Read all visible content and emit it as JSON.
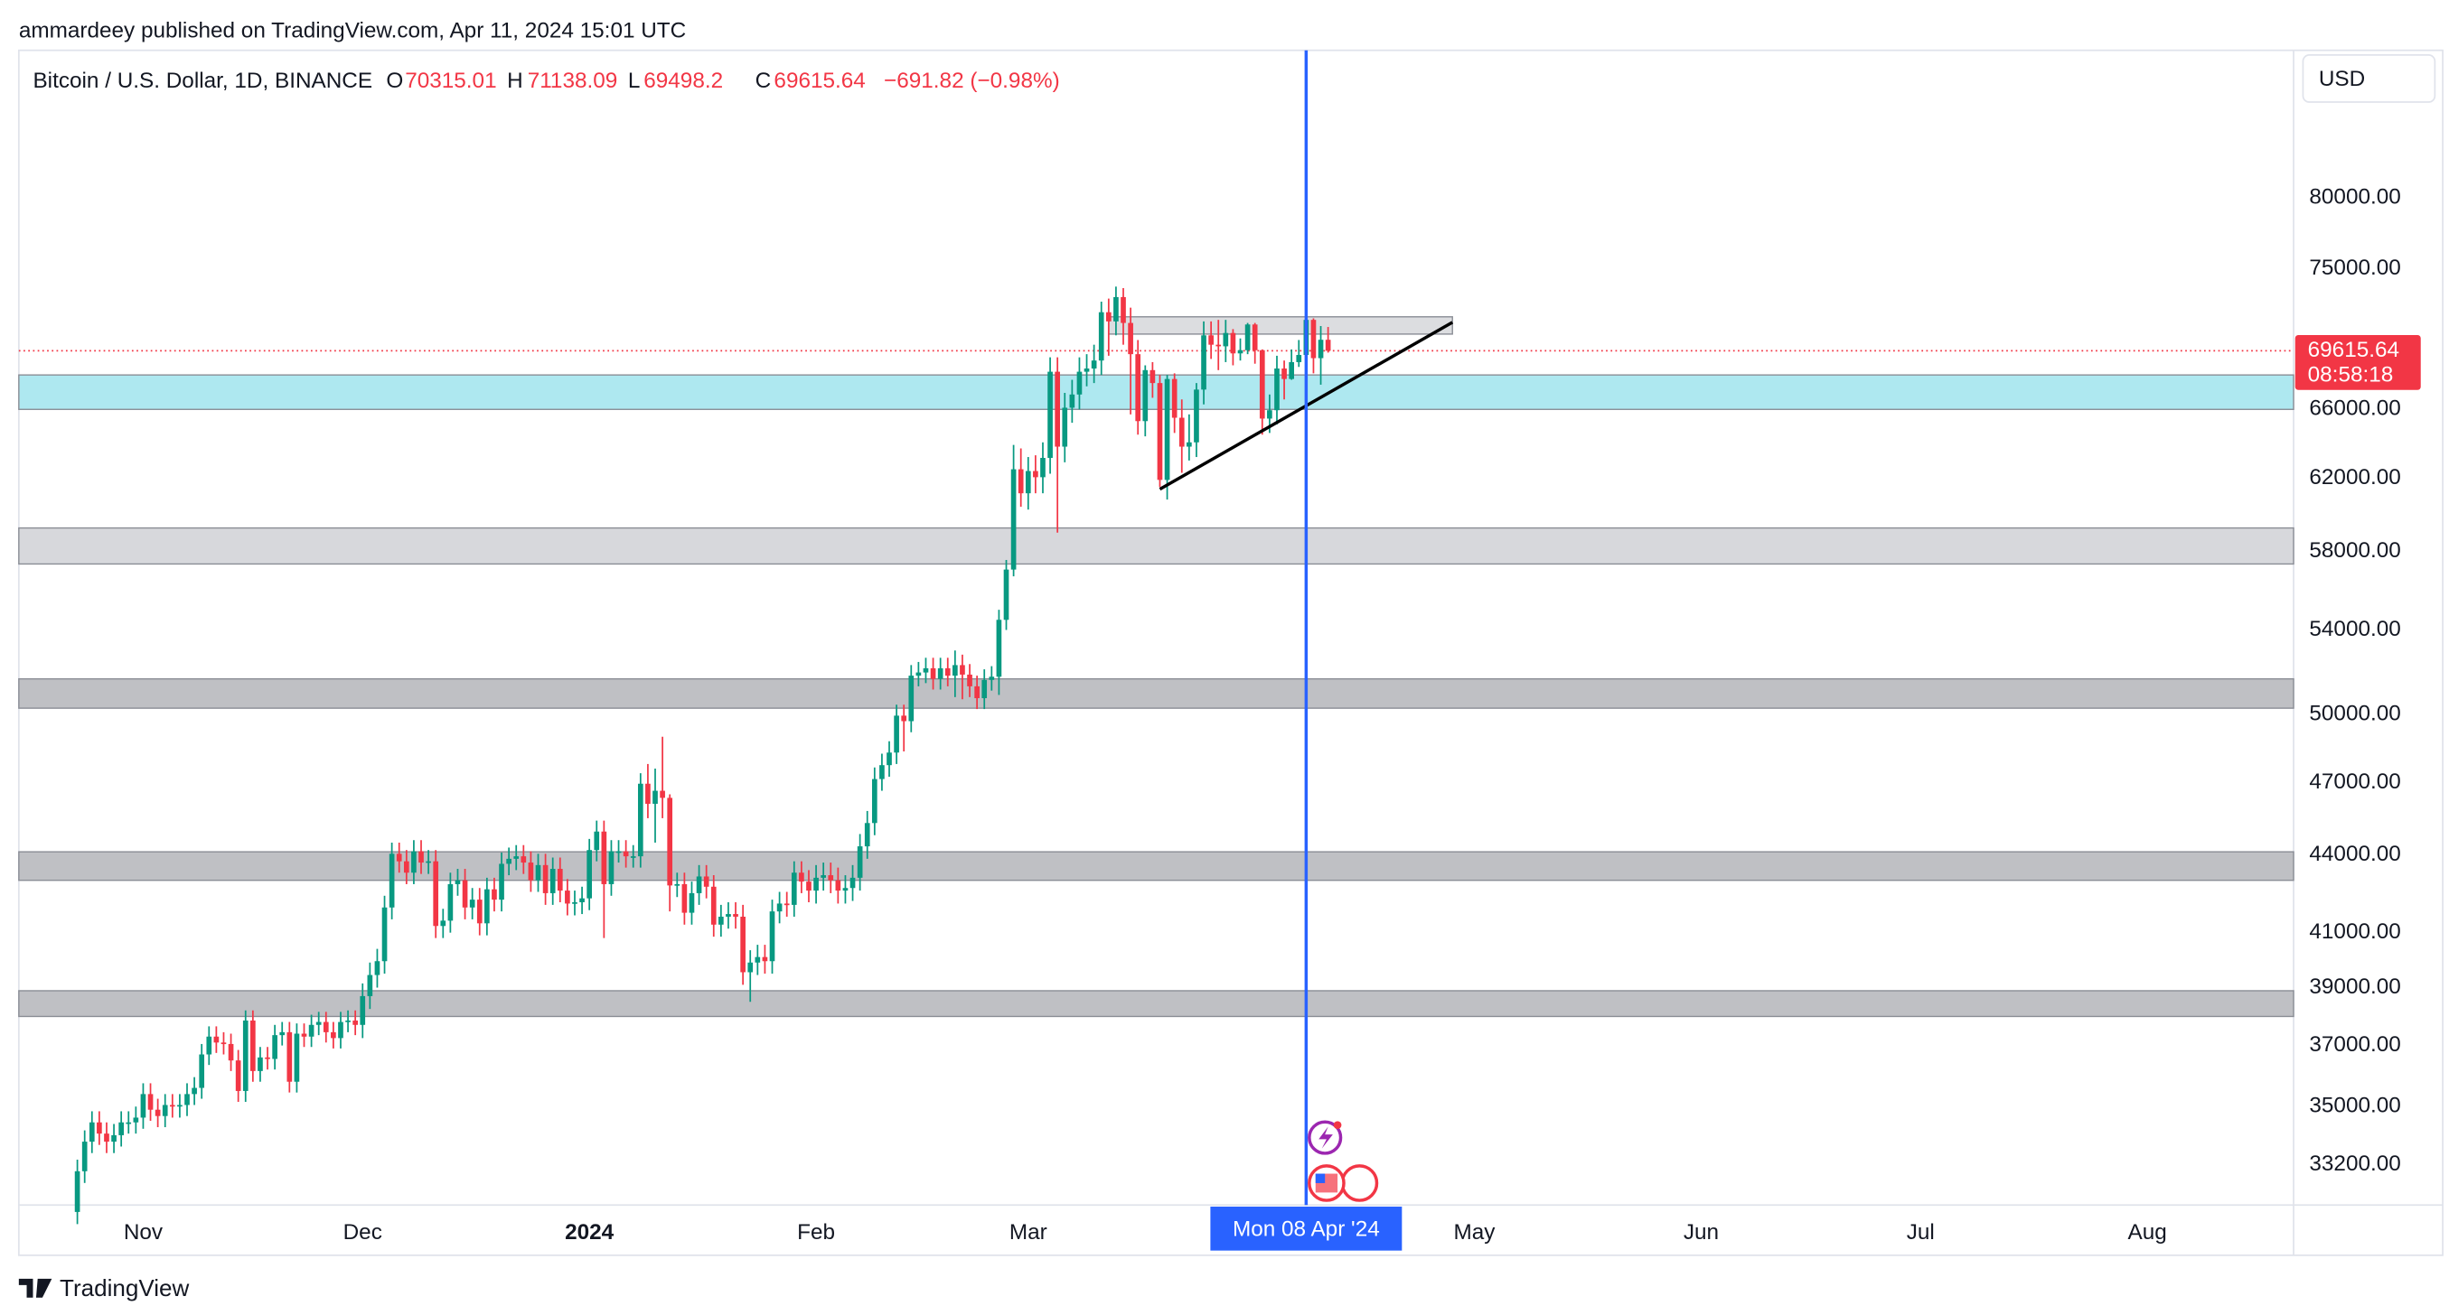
{
  "header": {
    "title": "ammardeey published on TradingView.com, Apr 11, 2024 15:01 UTC",
    "footer": "TradingView"
  },
  "chart_data": {
    "type": "candlestick",
    "symbol": "Bitcoin / U.S. Dollar, 1D, BINANCE",
    "legend_labels": [
      "O",
      "H",
      "L",
      "C"
    ],
    "change": "−691.82 (−0.98%)",
    "currency": "USD",
    "countdown": "08:58:18",
    "up_color": "#089981",
    "down_color": "#f23645",
    "ylog": true,
    "ylim": [
      32000,
      91500
    ],
    "yticks": [
      {
        "value": 80000,
        "label": "80000.00"
      },
      {
        "value": 75000,
        "label": "75000.00"
      },
      {
        "value": 66000,
        "label": "66000.00"
      },
      {
        "value": 62000,
        "label": "62000.00"
      },
      {
        "value": 58000,
        "label": "58000.00"
      },
      {
        "value": 54000,
        "label": "54000.00"
      },
      {
        "value": 50000,
        "label": "50000.00"
      },
      {
        "value": 47000,
        "label": "47000.00"
      },
      {
        "value": 44000,
        "label": "44000.00"
      },
      {
        "value": 41000,
        "label": "41000.00"
      },
      {
        "value": 39000,
        "label": "39000.00"
      },
      {
        "value": 37000,
        "label": "37000.00"
      },
      {
        "value": 35000,
        "label": "35000.00"
      },
      {
        "value": 33200,
        "label": "33200.00"
      }
    ],
    "xlim": [
      "2023-10-15",
      "2024-08-21"
    ],
    "xticks": [
      {
        "value": "2023-11-01",
        "label": "Nov"
      },
      {
        "value": "2023-12-01",
        "label": "Dec"
      },
      {
        "value": "2024-01-01",
        "label": "2024"
      },
      {
        "value": "2024-02-01",
        "label": "Feb"
      },
      {
        "value": "2024-03-01",
        "label": "Mar"
      },
      {
        "value": "2024-05-01",
        "label": "May"
      },
      {
        "value": "2024-06-01",
        "label": "Jun"
      },
      {
        "value": "2024-07-01",
        "label": "Jul"
      },
      {
        "value": "2024-08-01",
        "label": "Aug"
      }
    ],
    "crosshair": {
      "date": "2024-04-08",
      "label": "Mon 08 Apr '24",
      "color": "#2962ff"
    },
    "zones": [
      {
        "low": 66000,
        "high": 68100,
        "color": "#aee8f0"
      },
      {
        "low": 57340,
        "high": 59250,
        "color": "#d7d8dc"
      },
      {
        "low": 50290,
        "high": 51650,
        "color": "#bfc0c4"
      },
      {
        "low": 43000,
        "high": 44130,
        "color": "#bfc0c4"
      },
      {
        "low": 37990,
        "high": 38890,
        "color": "#bfc0c4"
      },
      {
        "low": 70680,
        "high": 71800,
        "color": "#dcdde0",
        "from": "2024-03-12",
        "to": "2024-04-28"
      }
    ],
    "trendline": {
      "x": [
        "2024-03-19",
        "2024-04-28"
      ],
      "y": [
        61380,
        71440
      ],
      "color": "#000000"
    },
    "x": [
      "2023-10-23",
      "2023-10-24",
      "2023-10-25",
      "2023-10-26",
      "2023-10-27",
      "2023-10-28",
      "2023-10-29",
      "2023-10-30",
      "2023-10-31",
      "2023-11-01",
      "2023-11-02",
      "2023-11-03",
      "2023-11-04",
      "2023-11-05",
      "2023-11-06",
      "2023-11-07",
      "2023-11-08",
      "2023-11-09",
      "2023-11-10",
      "2023-11-11",
      "2023-11-12",
      "2023-11-13",
      "2023-11-14",
      "2023-11-15",
      "2023-11-16",
      "2023-11-17",
      "2023-11-18",
      "2023-11-19",
      "2023-11-20",
      "2023-11-21",
      "2023-11-22",
      "2023-11-23",
      "2023-11-24",
      "2023-11-25",
      "2023-11-26",
      "2023-11-27",
      "2023-11-28",
      "2023-11-29",
      "2023-11-30",
      "2023-12-01",
      "2023-12-02",
      "2023-12-03",
      "2023-12-04",
      "2023-12-05",
      "2023-12-06",
      "2023-12-07",
      "2023-12-08",
      "2023-12-09",
      "2023-12-10",
      "2023-12-11",
      "2023-12-12",
      "2023-12-13",
      "2023-12-14",
      "2023-12-15",
      "2023-12-16",
      "2023-12-17",
      "2023-12-18",
      "2023-12-19",
      "2023-12-20",
      "2023-12-21",
      "2023-12-22",
      "2023-12-23",
      "2023-12-24",
      "2023-12-25",
      "2023-12-26",
      "2023-12-27",
      "2023-12-28",
      "2023-12-29",
      "2023-12-30",
      "2023-12-31",
      "2024-01-01",
      "2024-01-02",
      "2024-01-03",
      "2024-01-04",
      "2024-01-05",
      "2024-01-06",
      "2024-01-07",
      "2024-01-08",
      "2024-01-09",
      "2024-01-10",
      "2024-01-11",
      "2024-01-12",
      "2024-01-13",
      "2024-01-14",
      "2024-01-15",
      "2024-01-16",
      "2024-01-17",
      "2024-01-18",
      "2024-01-19",
      "2024-01-20",
      "2024-01-21",
      "2024-01-22",
      "2024-01-23",
      "2024-01-24",
      "2024-01-25",
      "2024-01-26",
      "2024-01-27",
      "2024-01-28",
      "2024-01-29",
      "2024-01-30",
      "2024-01-31",
      "2024-02-01",
      "2024-02-02",
      "2024-02-03",
      "2024-02-04",
      "2024-02-05",
      "2024-02-06",
      "2024-02-07",
      "2024-02-08",
      "2024-02-09",
      "2024-02-10",
      "2024-02-11",
      "2024-02-12",
      "2024-02-13",
      "2024-02-14",
      "2024-02-15",
      "2024-02-16",
      "2024-02-17",
      "2024-02-18",
      "2024-02-19",
      "2024-02-20",
      "2024-02-21",
      "2024-02-22",
      "2024-02-23",
      "2024-02-24",
      "2024-02-25",
      "2024-02-26",
      "2024-02-27",
      "2024-02-28",
      "2024-02-29",
      "2024-03-01",
      "2024-03-02",
      "2024-03-03",
      "2024-03-04",
      "2024-03-05",
      "2024-03-06",
      "2024-03-07",
      "2024-03-08",
      "2024-03-09",
      "2024-03-10",
      "2024-03-11",
      "2024-03-12",
      "2024-03-13",
      "2024-03-14",
      "2024-03-15",
      "2024-03-16",
      "2024-03-17",
      "2024-03-18",
      "2024-03-19",
      "2024-03-20",
      "2024-03-21",
      "2024-03-22",
      "2024-03-23",
      "2024-03-24",
      "2024-03-25",
      "2024-03-26",
      "2024-03-27",
      "2024-03-28",
      "2024-03-29",
      "2024-03-30",
      "2024-03-31",
      "2024-04-01",
      "2024-04-02",
      "2024-04-03",
      "2024-04-04",
      "2024-04-05",
      "2024-04-06",
      "2024-04-07",
      "2024-04-08",
      "2024-04-09",
      "2024-04-10",
      "2024-04-11"
    ],
    "ohlc": [
      [
        31800,
        33350,
        31450,
        33000
      ],
      [
        33000,
        34250,
        32650,
        33900
      ],
      [
        33900,
        34850,
        33550,
        34500
      ],
      [
        34500,
        34850,
        33800,
        34150
      ],
      [
        34150,
        34500,
        33550,
        33900
      ],
      [
        33900,
        34450,
        33550,
        34100
      ],
      [
        34100,
        34850,
        33750,
        34500
      ],
      [
        34500,
        34850,
        34150,
        34500
      ],
      [
        34500,
        35000,
        34150,
        34650
      ],
      [
        34650,
        35750,
        34300,
        35400
      ],
      [
        35400,
        35750,
        34550,
        34900
      ],
      [
        34900,
        35250,
        34350,
        34700
      ],
      [
        34700,
        35400,
        34350,
        35050
      ],
      [
        35050,
        35400,
        34650,
        35000
      ],
      [
        35000,
        35400,
        34650,
        35050
      ],
      [
        35050,
        35750,
        34700,
        35400
      ],
      [
        35400,
        35950,
        35050,
        35600
      ],
      [
        35600,
        37050,
        35250,
        36700
      ],
      [
        36700,
        37650,
        36350,
        37300
      ],
      [
        37300,
        37650,
        36750,
        37100
      ],
      [
        37100,
        37450,
        36700,
        37050
      ],
      [
        37050,
        37400,
        36150,
        36500
      ],
      [
        36500,
        36850,
        35150,
        35500
      ],
      [
        35500,
        38200,
        35150,
        37850
      ],
      [
        37850,
        38200,
        35800,
        36150
      ],
      [
        36150,
        36950,
        35800,
        36600
      ],
      [
        36600,
        36950,
        36200,
        36550
      ],
      [
        36550,
        37700,
        36200,
        37350
      ],
      [
        37350,
        37800,
        37000,
        37450
      ],
      [
        37450,
        37800,
        35450,
        35800
      ],
      [
        35800,
        37750,
        35450,
        37400
      ],
      [
        37400,
        37750,
        36950,
        37300
      ],
      [
        37300,
        38050,
        36950,
        37700
      ],
      [
        37700,
        38150,
        37350,
        37800
      ],
      [
        37800,
        38150,
        37100,
        37450
      ],
      [
        37450,
        37800,
        36900,
        37250
      ],
      [
        37250,
        38150,
        36900,
        37800
      ],
      [
        37800,
        38200,
        37450,
        37850
      ],
      [
        37850,
        38200,
        37350,
        37700
      ],
      [
        37700,
        39150,
        37250,
        38700
      ],
      [
        38700,
        39900,
        38250,
        39450
      ],
      [
        39450,
        40400,
        39000,
        39950
      ],
      [
        39950,
        42400,
        39500,
        41950
      ],
      [
        41950,
        44500,
        41500,
        44050
      ],
      [
        44050,
        44500,
        43300,
        43750
      ],
      [
        43750,
        44200,
        42850,
        43300
      ],
      [
        43300,
        44600,
        42850,
        44150
      ],
      [
        44150,
        44600,
        43250,
        43700
      ],
      [
        43700,
        44200,
        43250,
        43750
      ],
      [
        43750,
        44200,
        40800,
        41250
      ],
      [
        41250,
        41900,
        40800,
        41450
      ],
      [
        41450,
        43300,
        41000,
        42850
      ],
      [
        42850,
        43450,
        42400,
        43000
      ],
      [
        43000,
        43450,
        41500,
        41950
      ],
      [
        41950,
        42700,
        41500,
        42250
      ],
      [
        42250,
        42700,
        40900,
        41350
      ],
      [
        41350,
        43100,
        40900,
        42650
      ],
      [
        42650,
        43100,
        41800,
        42250
      ],
      [
        42250,
        44100,
        41800,
        43650
      ],
      [
        43650,
        44300,
        43200,
        43850
      ],
      [
        43850,
        44400,
        43400,
        43950
      ],
      [
        43950,
        44400,
        43250,
        43700
      ],
      [
        43700,
        44150,
        42550,
        43000
      ],
      [
        43000,
        44050,
        42550,
        43600
      ],
      [
        43600,
        44050,
        42050,
        42500
      ],
      [
        42500,
        43900,
        42050,
        43450
      ],
      [
        43450,
        43900,
        42150,
        42600
      ],
      [
        42600,
        43050,
        41650,
        42100
      ],
      [
        42100,
        42600,
        41650,
        42150
      ],
      [
        42150,
        42750,
        41700,
        42300
      ],
      [
        42300,
        44650,
        41850,
        44200
      ],
      [
        44200,
        45400,
        43750,
        44950
      ],
      [
        44950,
        45400,
        40800,
        42850
      ],
      [
        42850,
        44600,
        42400,
        44150
      ],
      [
        44150,
        44600,
        43700,
        44150
      ],
      [
        44150,
        44600,
        43500,
        43950
      ],
      [
        43950,
        44400,
        43500,
        43950
      ],
      [
        43950,
        47400,
        43500,
        46950
      ],
      [
        46950,
        47800,
        45500,
        46100
      ],
      [
        46100,
        47600,
        44500,
        46650
      ],
      [
        46650,
        49000,
        45500,
        46350
      ],
      [
        46350,
        46500,
        41800,
        42800
      ],
      [
        42800,
        43300,
        42350,
        42850
      ],
      [
        42850,
        43300,
        41300,
        41750
      ],
      [
        41750,
        42950,
        41300,
        42500
      ],
      [
        42500,
        43600,
        42050,
        43150
      ],
      [
        43150,
        43600,
        42300,
        42750
      ],
      [
        42750,
        43200,
        40850,
        41300
      ],
      [
        41300,
        42050,
        40850,
        41600
      ],
      [
        41600,
        42150,
        41150,
        41700
      ],
      [
        41700,
        42150,
        41150,
        41600
      ],
      [
        41600,
        42050,
        39100,
        39550
      ],
      [
        39550,
        40350,
        38500,
        39900
      ],
      [
        39900,
        40550,
        39450,
        40100
      ],
      [
        40100,
        40550,
        39500,
        39950
      ],
      [
        39950,
        42250,
        39500,
        41800
      ],
      [
        41800,
        42550,
        41350,
        42100
      ],
      [
        42100,
        42550,
        41600,
        42050
      ],
      [
        42050,
        43750,
        41600,
        43300
      ],
      [
        43300,
        43750,
        42500,
        42950
      ],
      [
        42950,
        43400,
        42150,
        42600
      ],
      [
        42600,
        43600,
        42100,
        43100
      ],
      [
        43100,
        43700,
        42600,
        43200
      ],
      [
        43200,
        43700,
        42500,
        43000
      ],
      [
        43000,
        43500,
        42100,
        42600
      ],
      [
        42600,
        43200,
        42100,
        42700
      ],
      [
        42700,
        43600,
        42200,
        43100
      ],
      [
        43100,
        44850,
        42600,
        44350
      ],
      [
        44350,
        45800,
        43850,
        45300
      ],
      [
        45300,
        47650,
        44800,
        47150
      ],
      [
        47150,
        48250,
        46650,
        47750
      ],
      [
        47750,
        48800,
        47250,
        48300
      ],
      [
        48300,
        50450,
        47800,
        49950
      ],
      [
        49950,
        50450,
        48350,
        49700
      ],
      [
        49700,
        52300,
        49200,
        51800
      ],
      [
        51800,
        52450,
        51300,
        51950
      ],
      [
        51950,
        52650,
        51450,
        52150
      ],
      [
        52150,
        52650,
        51150,
        51650
      ],
      [
        51650,
        52650,
        51150,
        52150
      ],
      [
        52150,
        52650,
        51300,
        51800
      ],
      [
        51800,
        53000,
        50800,
        52300
      ],
      [
        52300,
        52800,
        50700,
        51850
      ],
      [
        51850,
        52350,
        50800,
        51300
      ],
      [
        51300,
        51800,
        50250,
        50750
      ],
      [
        50750,
        52100,
        50250,
        51600
      ],
      [
        51600,
        52250,
        51100,
        51750
      ],
      [
        51750,
        55000,
        50900,
        54500
      ],
      [
        54500,
        57550,
        54000,
        57050
      ],
      [
        57050,
        63900,
        56700,
        62500
      ],
      [
        62500,
        63700,
        60400,
        61150
      ],
      [
        61150,
        63200,
        60250,
        62400
      ],
      [
        62400,
        63300,
        61150,
        62050
      ],
      [
        62050,
        64050,
        61150,
        63150
      ],
      [
        63150,
        69200,
        62250,
        68300
      ],
      [
        68300,
        69200,
        59000,
        63800
      ],
      [
        63800,
        67000,
        62900,
        66100
      ],
      [
        66100,
        67800,
        65200,
        66900
      ],
      [
        66900,
        69200,
        66000,
        68300
      ],
      [
        68300,
        69400,
        67400,
        68500
      ],
      [
        68500,
        70000,
        67600,
        69000
      ],
      [
        69000,
        72800,
        68100,
        72100
      ],
      [
        72100,
        73000,
        69300,
        71500
      ],
      [
        71500,
        73800,
        70600,
        73100
      ],
      [
        73100,
        73700,
        70000,
        71400
      ],
      [
        71400,
        72400,
        65700,
        69400
      ],
      [
        69400,
        70300,
        64500,
        65300
      ],
      [
        65300,
        68700,
        64400,
        68400
      ],
      [
        68400,
        68900,
        66700,
        67600
      ],
      [
        67600,
        68100,
        61500,
        61900
      ],
      [
        61900,
        68100,
        60800,
        67850
      ],
      [
        67850,
        68200,
        64600,
        65500
      ],
      [
        65500,
        66600,
        62300,
        63800
      ],
      [
        63800,
        65700,
        63000,
        64050
      ],
      [
        64050,
        67600,
        63200,
        67200
      ],
      [
        67200,
        71500,
        66300,
        70600
      ],
      [
        70600,
        71500,
        69100,
        70000
      ],
      [
        70000,
        71600,
        68400,
        69900
      ],
      [
        69900,
        71600,
        68900,
        70750
      ],
      [
        70750,
        71000,
        68700,
        69450
      ],
      [
        69450,
        70400,
        69000,
        69650
      ],
      [
        69650,
        71400,
        69400,
        71300
      ],
      [
        71300,
        71400,
        68800,
        69650
      ],
      [
        69650,
        69700,
        64500,
        65450
      ],
      [
        65450,
        66900,
        64600,
        65950
      ],
      [
        65950,
        69300,
        65100,
        68500
      ],
      [
        68500,
        69000,
        66600,
        67850
      ],
      [
        67850,
        69700,
        67800,
        68900
      ],
      [
        68900,
        70300,
        68600,
        69350
      ],
      [
        69350,
        72700,
        69200,
        71600
      ],
      [
        71600,
        71700,
        68200,
        69150
      ],
      [
        69150,
        71200,
        67500,
        70315.01
      ],
      [
        70315.01,
        71138.09,
        69498.2,
        69615.64
      ]
    ]
  }
}
